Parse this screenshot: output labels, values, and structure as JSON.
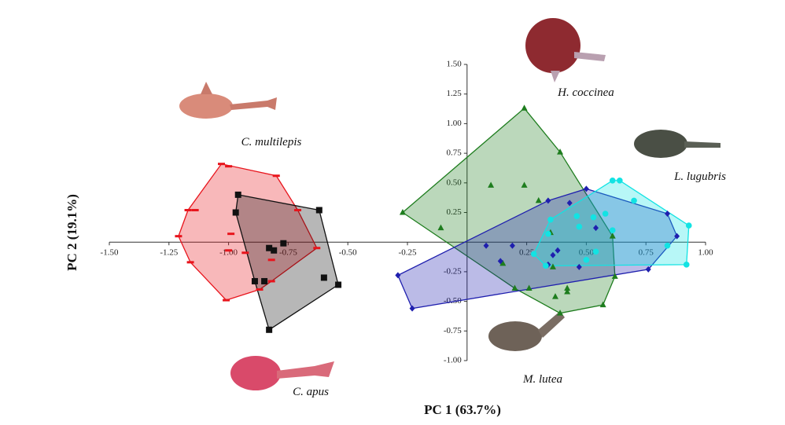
{
  "chart_data": {
    "type": "scatter",
    "x_label": "PC 1 (63.7%)",
    "y_label": "PC 2 (19.1%)",
    "xlim": [
      -1.5,
      1.0
    ],
    "xticks": [
      {
        "value": -1.5,
        "label": "-1.50"
      },
      {
        "value": -1.25,
        "label": "-1.25"
      },
      {
        "value": -1.0,
        "label": "-1.00"
      },
      {
        "value": -0.75,
        "label": "-0.75"
      },
      {
        "value": -0.5,
        "label": "-0.50"
      },
      {
        "value": -0.25,
        "label": "-0.25"
      },
      {
        "value": 0.25,
        "label": "0.25"
      },
      {
        "value": 0.5,
        "label": "0.50"
      },
      {
        "value": 0.75,
        "label": "0.75"
      },
      {
        "value": 1.0,
        "label": "1.00"
      }
    ],
    "ylim": [
      -1.0,
      1.5
    ],
    "yticks": [
      {
        "value": -1.0,
        "label": "-1.00"
      },
      {
        "value": -0.75,
        "label": "-0.75"
      },
      {
        "value": -0.5,
        "label": "-0.50"
      },
      {
        "value": -0.25,
        "label": "-0.25"
      },
      {
        "value": 0.25,
        "label": "0.25"
      },
      {
        "value": 0.5,
        "label": "0.50"
      },
      {
        "value": 0.75,
        "label": "0.75"
      },
      {
        "value": 1.0,
        "label": "1.00"
      },
      {
        "value": 1.25,
        "label": "1.25"
      },
      {
        "value": 1.5,
        "label": "1.50"
      }
    ],
    "series": [
      {
        "name": "C. multilepis",
        "color": "#e8141c",
        "marker": "dash",
        "x": [
          -1.03,
          -1.0,
          -0.8,
          -0.71,
          -1.17,
          -1.14,
          -1.21,
          -0.99,
          -0.63,
          -1.0,
          -0.93,
          -1.16,
          -0.82,
          -0.82,
          -0.87,
          -1.01
        ],
        "y": [
          0.66,
          0.64,
          0.56,
          0.27,
          0.27,
          0.27,
          0.05,
          0.07,
          -0.05,
          -0.07,
          -0.09,
          -0.17,
          -0.15,
          -0.33,
          -0.4,
          -0.49
        ]
      },
      {
        "name": "C. apus",
        "color": "#111111",
        "marker": "square",
        "x": [
          -0.96,
          -0.97,
          -0.62,
          -0.81,
          -0.77,
          -0.83,
          -0.89,
          -0.85,
          -0.6,
          -0.54,
          -0.83
        ],
        "y": [
          0.4,
          0.25,
          0.27,
          -0.07,
          -0.01,
          -0.05,
          -0.33,
          -0.33,
          -0.3,
          -0.36,
          -0.74
        ]
      },
      {
        "name": "H. coccinea",
        "color": "#1e7d1e",
        "marker": "triangle",
        "x": [
          0.24,
          0.39,
          0.1,
          0.24,
          -0.27,
          -0.11,
          0.3,
          0.35,
          0.61,
          0.15,
          0.2,
          0.26,
          0.36,
          0.42,
          0.37,
          0.39,
          0.42,
          0.57,
          0.62
        ],
        "y": [
          1.13,
          0.76,
          0.48,
          0.48,
          0.25,
          0.12,
          0.35,
          0.08,
          0.05,
          -0.18,
          -0.39,
          -0.39,
          -0.21,
          -0.39,
          -0.46,
          -0.6,
          -0.42,
          -0.53,
          -0.29
        ]
      },
      {
        "name": "L. lugubris",
        "color": "#1f1fae",
        "marker": "diamond",
        "x": [
          -0.29,
          -0.23,
          0.08,
          0.19,
          0.5,
          0.34,
          0.43,
          0.54,
          0.84,
          0.88,
          0.76,
          0.38,
          0.36,
          0.47,
          0.34,
          0.14
        ],
        "y": [
          -0.28,
          -0.56,
          -0.03,
          -0.03,
          0.45,
          0.35,
          0.33,
          0.12,
          0.24,
          0.05,
          -0.23,
          -0.07,
          -0.11,
          -0.21,
          -0.19,
          -0.16
        ]
      },
      {
        "name": "M. lutea",
        "color": "#12e3e3",
        "marker": "circle",
        "x": [
          0.61,
          0.64,
          0.7,
          0.58,
          0.46,
          0.53,
          0.47,
          0.61,
          0.35,
          0.34,
          0.5,
          0.54,
          0.93,
          0.84,
          0.92,
          0.28,
          0.33
        ],
        "y": [
          0.52,
          0.52,
          0.35,
          0.24,
          0.22,
          0.21,
          0.13,
          0.1,
          0.19,
          0.07,
          -0.15,
          -0.08,
          0.14,
          -0.03,
          -0.19,
          -0.1,
          -0.2
        ]
      }
    ]
  }
}
